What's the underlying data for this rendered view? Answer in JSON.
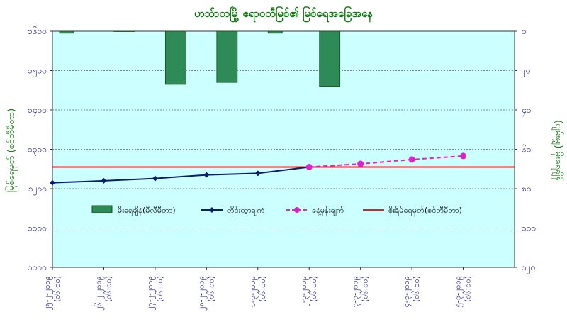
{
  "chart_data": {
    "type": "bar+line",
    "title": "ဟသ်ာတမြို့ ဧရာဝတီမြစ်၏ မြစ်ရေအခြေအနေ",
    "ylabel_left": "မြစ်ရေမှတ် (စင်တီမီတာ)",
    "ylabel_right": "(ပျမ်းမျှ) မိုးရေချိန်",
    "ylim_left": [
      1000,
      1600
    ],
    "ylim_right": [
      0,
      120
    ],
    "left_ticks": [
      "၁၆၀၀",
      "၁၅၀၀",
      "၁၄၀၀",
      "၁၃၀၀",
      "၁၂၀၀",
      "၁၁၀၀",
      "၁၀၀၀"
    ],
    "left_tick_values": [
      1600,
      1500,
      1400,
      1300,
      1200,
      1100,
      1000
    ],
    "right_ticks": [
      "၀",
      "၂၀",
      "၄၀",
      "၆၀",
      "၈၀",
      "၁၀၀",
      "၁၂၀"
    ],
    "right_tick_values": [
      0,
      20,
      40,
      60,
      80,
      100,
      120
    ],
    "categories": [
      [
        "၂၅-၂-၂၀၁၉",
        "(၀၆:၀၀)"
      ],
      [
        "၂၆-၂-၂၀၁၉",
        "(၀၆:၀၀)"
      ],
      [
        "၂၇-၂-၂၀၁၉",
        "(၀၆:၀၀)"
      ],
      [
        "၂၈-၂-၂၀၁၉",
        "(၀၆:၀၀)"
      ],
      [
        "၁-၃-၂၀၁၉",
        "(၀၆:၀၀)"
      ],
      [
        "၂-၃-၂၀၁၉",
        "(၀၆:၀၀)"
      ],
      [
        "၃-၃-၂၀၁၉",
        "(၀၆:၀၀)"
      ],
      [
        "၄-၃-၂၀၁၉",
        "(၀၆:၀၀)"
      ],
      [
        "၅-၃-၂၀၁၉",
        "(၀၆:၀၀)"
      ]
    ],
    "series": [
      {
        "name": "မိုးရေချိန်(မီလီမီတာ)",
        "kind": "bar",
        "axis": "right",
        "color": "#2e8b57",
        "values": [
          1,
          0,
          27,
          26,
          1,
          28,
          null,
          null,
          null
        ]
      },
      {
        "name": "တိုင်းထွာချက်",
        "kind": "line",
        "axis": "left",
        "color": "#0b1e6e",
        "values": [
          1215,
          1220,
          1226,
          1235,
          1239,
          1255,
          null,
          null,
          null
        ]
      },
      {
        "name": "ခန့်မှန်းချက်",
        "kind": "line-dashed",
        "axis": "left",
        "color": "#e020d0",
        "values": [
          null,
          null,
          null,
          null,
          null,
          1255,
          1263,
          1274,
          1283
        ]
      },
      {
        "name": "စိုးရိမ်ရေမှတ်(စင်တီမီတာ)",
        "kind": "hline",
        "axis": "left",
        "color": "#e0201e",
        "value": 1255
      }
    ],
    "legend_position": "middle",
    "grid": true,
    "colors": {
      "plot_bg": "#ccffff",
      "title": "#0a7a0a",
      "axis_label": "#0a7a0a",
      "ticks": "#1a1a80",
      "grid": "#666666"
    }
  }
}
